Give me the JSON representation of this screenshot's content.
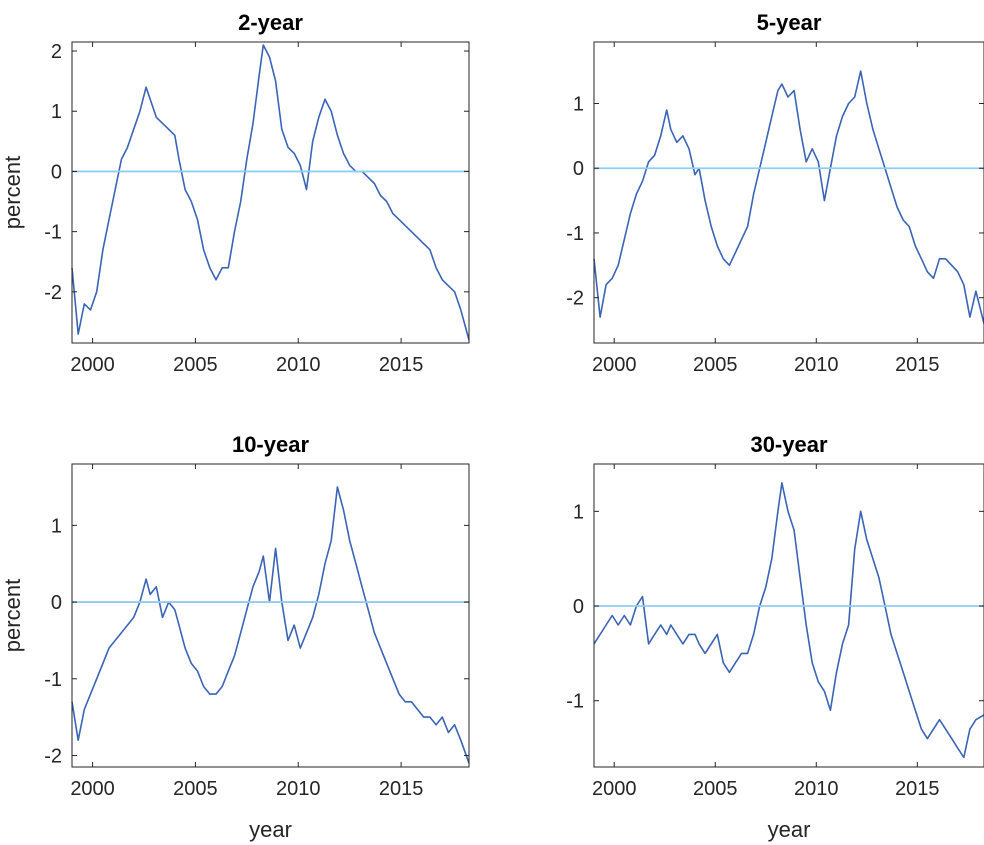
{
  "figure": {
    "colors": {
      "series": "#3a64b5",
      "zero_line": "#8fcdf2",
      "axes": "#262626",
      "background": "#ffffff"
    }
  },
  "chart_data": [
    {
      "type": "line",
      "title": "2-year",
      "xlabel": "",
      "ylabel": "percent",
      "xlim": [
        1999,
        2018.3
      ],
      "ylim": [
        -2.85,
        2.15
      ],
      "xticks": [
        2000,
        2005,
        2010,
        2015
      ],
      "xtick_labels": [
        "2000",
        "2005",
        "2010",
        "2015"
      ],
      "yticks": [
        -2,
        -1,
        0,
        1,
        2
      ],
      "ytick_labels": [
        "-2",
        "-1",
        "0",
        "1",
        "2"
      ],
      "reference_line_y": 0,
      "grid": false,
      "series": [
        {
          "x": [
            1999.0,
            1999.3,
            1999.6,
            1999.9,
            2000.2,
            2000.5,
            2000.8,
            2001.1,
            2001.4,
            2001.7,
            2002.0,
            2002.3,
            2002.6,
            2002.8,
            2003.1,
            2003.4,
            2003.7,
            2004.0,
            2004.2,
            2004.5,
            2004.8,
            2005.1,
            2005.4,
            2005.7,
            2006.0,
            2006.3,
            2006.6,
            2006.9,
            2007.2,
            2007.5,
            2007.8,
            2008.1,
            2008.3,
            2008.6,
            2008.9,
            2009.2,
            2009.5,
            2009.8,
            2010.1,
            2010.4,
            2010.7,
            2011.0,
            2011.3,
            2011.6,
            2011.9,
            2012.2,
            2012.5,
            2012.8,
            2013.1,
            2013.4,
            2013.7,
            2014.0,
            2014.3,
            2014.6,
            2014.9,
            2015.2,
            2015.5,
            2015.8,
            2016.1,
            2016.4,
            2016.7,
            2017.0,
            2017.3,
            2017.6,
            2017.9,
            2018.3
          ],
          "y": [
            -1.6,
            -2.7,
            -2.2,
            -2.3,
            -2.0,
            -1.3,
            -0.8,
            -0.3,
            0.2,
            0.4,
            0.7,
            1.0,
            1.4,
            1.2,
            0.9,
            0.8,
            0.7,
            0.6,
            0.2,
            -0.3,
            -0.5,
            -0.8,
            -1.3,
            -1.6,
            -1.8,
            -1.6,
            -1.6,
            -1.0,
            -0.5,
            0.2,
            0.8,
            1.6,
            2.1,
            1.9,
            1.5,
            0.7,
            0.4,
            0.3,
            0.1,
            -0.3,
            0.5,
            0.9,
            1.2,
            1.0,
            0.6,
            0.3,
            0.1,
            0.0,
            0.0,
            -0.1,
            -0.2,
            -0.4,
            -0.5,
            -0.7,
            -0.8,
            -0.9,
            -1.0,
            -1.1,
            -1.2,
            -1.3,
            -1.6,
            -1.8,
            -1.9,
            -2.0,
            -2.3,
            -2.8
          ]
        }
      ]
    },
    {
      "type": "line",
      "title": "5-year",
      "xlabel": "",
      "ylabel": "",
      "xlim": [
        1999,
        2018.3
      ],
      "ylim": [
        -2.7,
        1.95
      ],
      "xticks": [
        2000,
        2005,
        2010,
        2015
      ],
      "xtick_labels": [
        "2000",
        "2005",
        "2010",
        "2015"
      ],
      "yticks": [
        -2,
        -1,
        0,
        1
      ],
      "ytick_labels": [
        "-2",
        "-1",
        "0",
        "1"
      ],
      "reference_line_y": 0,
      "grid": false,
      "series": [
        {
          "x": [
            1999.0,
            1999.3,
            1999.6,
            1999.9,
            2000.2,
            2000.5,
            2000.8,
            2001.1,
            2001.4,
            2001.7,
            2002.0,
            2002.3,
            2002.6,
            2002.8,
            2003.1,
            2003.4,
            2003.7,
            2004.0,
            2004.2,
            2004.5,
            2004.8,
            2005.1,
            2005.4,
            2005.7,
            2006.0,
            2006.3,
            2006.6,
            2006.9,
            2007.2,
            2007.5,
            2007.8,
            2008.1,
            2008.3,
            2008.6,
            2008.9,
            2009.2,
            2009.5,
            2009.8,
            2010.1,
            2010.4,
            2010.7,
            2011.0,
            2011.3,
            2011.6,
            2011.9,
            2012.2,
            2012.5,
            2012.8,
            2013.1,
            2013.4,
            2013.7,
            2014.0,
            2014.3,
            2014.6,
            2014.9,
            2015.2,
            2015.5,
            2015.8,
            2016.1,
            2016.4,
            2016.7,
            2017.0,
            2017.3,
            2017.6,
            2017.9,
            2018.3
          ],
          "y": [
            -1.4,
            -2.3,
            -1.8,
            -1.7,
            -1.5,
            -1.1,
            -0.7,
            -0.4,
            -0.2,
            0.1,
            0.2,
            0.5,
            0.9,
            0.6,
            0.4,
            0.5,
            0.3,
            -0.1,
            0.0,
            -0.5,
            -0.9,
            -1.2,
            -1.4,
            -1.5,
            -1.3,
            -1.1,
            -0.9,
            -0.4,
            0.0,
            0.4,
            0.8,
            1.2,
            1.3,
            1.1,
            1.2,
            0.6,
            0.1,
            0.3,
            0.1,
            -0.5,
            0.0,
            0.5,
            0.8,
            1.0,
            1.1,
            1.5,
            1.0,
            0.6,
            0.3,
            0.0,
            -0.3,
            -0.6,
            -0.8,
            -0.9,
            -1.2,
            -1.4,
            -1.6,
            -1.7,
            -1.4,
            -1.4,
            -1.5,
            -1.6,
            -1.8,
            -2.3,
            -1.9,
            -2.4
          ]
        }
      ]
    },
    {
      "type": "line",
      "title": "10-year",
      "xlabel": "year",
      "ylabel": "percent",
      "xlim": [
        1999,
        2018.3
      ],
      "ylim": [
        -2.15,
        1.8
      ],
      "xticks": [
        2000,
        2005,
        2010,
        2015
      ],
      "xtick_labels": [
        "2000",
        "2005",
        "2010",
        "2015"
      ],
      "yticks": [
        -2,
        -1,
        0,
        1
      ],
      "ytick_labels": [
        "-2",
        "-1",
        "0",
        "1"
      ],
      "reference_line_y": 0,
      "grid": false,
      "series": [
        {
          "x": [
            1999.0,
            1999.3,
            1999.6,
            1999.9,
            2000.2,
            2000.5,
            2000.8,
            2001.1,
            2001.4,
            2001.7,
            2002.0,
            2002.3,
            2002.6,
            2002.8,
            2003.1,
            2003.4,
            2003.7,
            2004.0,
            2004.2,
            2004.5,
            2004.8,
            2005.1,
            2005.4,
            2005.7,
            2006.0,
            2006.3,
            2006.6,
            2006.9,
            2007.2,
            2007.5,
            2007.8,
            2008.1,
            2008.3,
            2008.6,
            2008.9,
            2009.2,
            2009.5,
            2009.8,
            2010.1,
            2010.4,
            2010.7,
            2011.0,
            2011.3,
            2011.6,
            2011.9,
            2012.2,
            2012.5,
            2012.8,
            2013.1,
            2013.4,
            2013.7,
            2014.0,
            2014.3,
            2014.6,
            2014.9,
            2015.2,
            2015.5,
            2015.8,
            2016.1,
            2016.4,
            2016.7,
            2017.0,
            2017.3,
            2017.6,
            2017.9,
            2018.3
          ],
          "y": [
            -1.3,
            -1.8,
            -1.4,
            -1.2,
            -1.0,
            -0.8,
            -0.6,
            -0.5,
            -0.4,
            -0.3,
            -0.2,
            0.0,
            0.3,
            0.1,
            0.2,
            -0.2,
            0.0,
            -0.1,
            -0.3,
            -0.6,
            -0.8,
            -0.9,
            -1.1,
            -1.2,
            -1.2,
            -1.1,
            -0.9,
            -0.7,
            -0.4,
            -0.1,
            0.2,
            0.4,
            0.6,
            0.0,
            0.7,
            0.0,
            -0.5,
            -0.3,
            -0.6,
            -0.4,
            -0.2,
            0.1,
            0.5,
            0.8,
            1.5,
            1.2,
            0.8,
            0.5,
            0.2,
            -0.1,
            -0.4,
            -0.6,
            -0.8,
            -1.0,
            -1.2,
            -1.3,
            -1.3,
            -1.4,
            -1.5,
            -1.5,
            -1.6,
            -1.5,
            -1.7,
            -1.6,
            -1.8,
            -2.1
          ]
        }
      ]
    },
    {
      "type": "line",
      "title": "30-year",
      "xlabel": "year",
      "ylabel": "",
      "xlim": [
        1999,
        2018.3
      ],
      "ylim": [
        -1.7,
        1.5
      ],
      "xticks": [
        2000,
        2005,
        2010,
        2015
      ],
      "xtick_labels": [
        "2000",
        "2005",
        "2010",
        "2015"
      ],
      "yticks": [
        -1,
        0,
        1
      ],
      "ytick_labels": [
        "-1",
        "0",
        "1"
      ],
      "reference_line_y": 0,
      "grid": false,
      "series": [
        {
          "x": [
            1999.0,
            1999.3,
            1999.6,
            1999.9,
            2000.2,
            2000.5,
            2000.8,
            2001.1,
            2001.4,
            2001.7,
            2002.0,
            2002.3,
            2002.6,
            2002.8,
            2003.1,
            2003.4,
            2003.7,
            2004.0,
            2004.2,
            2004.5,
            2004.8,
            2005.1,
            2005.4,
            2005.7,
            2006.0,
            2006.3,
            2006.6,
            2006.9,
            2007.2,
            2007.5,
            2007.8,
            2008.1,
            2008.3,
            2008.6,
            2008.9,
            2009.2,
            2009.5,
            2009.8,
            2010.1,
            2010.4,
            2010.7,
            2011.0,
            2011.3,
            2011.6,
            2011.9,
            2012.2,
            2012.5,
            2012.8,
            2013.1,
            2013.4,
            2013.7,
            2014.0,
            2014.3,
            2014.6,
            2014.9,
            2015.2,
            2015.5,
            2015.8,
            2016.1,
            2016.4,
            2016.7,
            2017.0,
            2017.3,
            2017.6,
            2017.9,
            2018.3
          ],
          "y": [
            -0.4,
            -0.3,
            -0.2,
            -0.1,
            -0.2,
            -0.1,
            -0.2,
            0.0,
            0.1,
            -0.4,
            -0.3,
            -0.2,
            -0.3,
            -0.2,
            -0.3,
            -0.4,
            -0.3,
            -0.3,
            -0.4,
            -0.5,
            -0.4,
            -0.3,
            -0.6,
            -0.7,
            -0.6,
            -0.5,
            -0.5,
            -0.3,
            0.0,
            0.2,
            0.5,
            1.0,
            1.3,
            1.0,
            0.8,
            0.3,
            -0.2,
            -0.6,
            -0.8,
            -0.9,
            -1.1,
            -0.7,
            -0.4,
            -0.2,
            0.6,
            1.0,
            0.7,
            0.5,
            0.3,
            0.0,
            -0.3,
            -0.5,
            -0.7,
            -0.9,
            -1.1,
            -1.3,
            -1.4,
            -1.3,
            -1.2,
            -1.3,
            -1.4,
            -1.5,
            -1.6,
            -1.3,
            -1.2,
            -1.15
          ]
        }
      ]
    }
  ]
}
